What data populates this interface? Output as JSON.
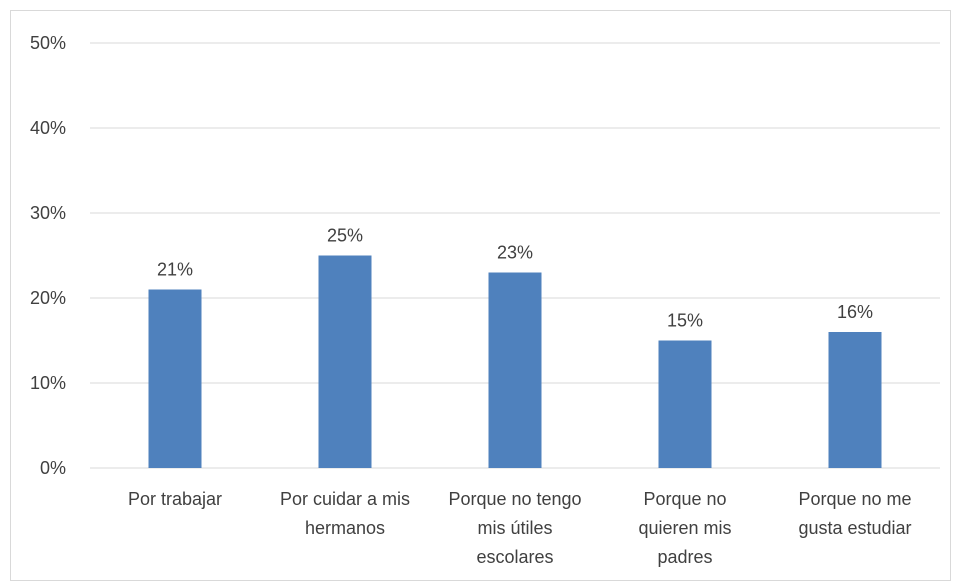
{
  "chart_data": {
    "type": "bar",
    "title": "",
    "xlabel": "",
    "ylabel": "",
    "categories": [
      [
        "Por trabajar"
      ],
      [
        "Por cuidar a mis",
        "hermanos"
      ],
      [
        "Porque no tengo",
        "mis útiles",
        "escolares"
      ],
      [
        "Porque no",
        "quieren mis",
        "padres"
      ],
      [
        "Porque no me",
        "gusta estudiar"
      ]
    ],
    "values": [
      21,
      25,
      23,
      15,
      16
    ],
    "data_labels": [
      "21%",
      "25%",
      "23%",
      "15%",
      "16%"
    ],
    "ylim": [
      0,
      50
    ],
    "y_ticks": [
      0,
      10,
      20,
      30,
      40,
      50
    ],
    "y_tick_labels": [
      "0%",
      "10%",
      "20%",
      "30%",
      "40%",
      "50%"
    ],
    "grid": true,
    "legend": "none",
    "colors": {
      "bar": "#4f81bd",
      "grid": "#d9d9d9",
      "text": "#404040",
      "border": "#d9d9d9"
    }
  }
}
